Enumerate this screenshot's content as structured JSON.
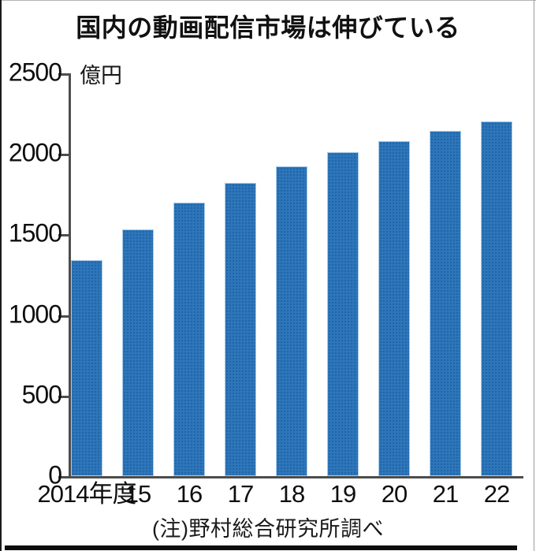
{
  "title": "国内の動画配信市場は伸びている",
  "unit_label": "億円",
  "source_note": "(注)野村総合研究所調べ",
  "colors": {
    "bar": "#2e76ba",
    "bar_dot": "#1f63a6",
    "axis": "#4d4d4d",
    "bottom_rule": "#0d0d0d"
  },
  "chart_data": {
    "type": "bar",
    "title": "国内の動画配信市場は伸びている",
    "ylabel": "億円",
    "xlabel": "年度",
    "categories": [
      "2014年度",
      "15",
      "16",
      "17",
      "18",
      "19",
      "20",
      "21",
      "22"
    ],
    "values": [
      1340,
      1530,
      1700,
      1820,
      1925,
      2010,
      2080,
      2145,
      2200
    ],
    "ylim": [
      0,
      2500
    ],
    "yticks": [
      0,
      500,
      1000,
      1500,
      2000,
      2500
    ],
    "grid": false,
    "legend": null,
    "note": "(注)野村総合研究所調べ"
  }
}
